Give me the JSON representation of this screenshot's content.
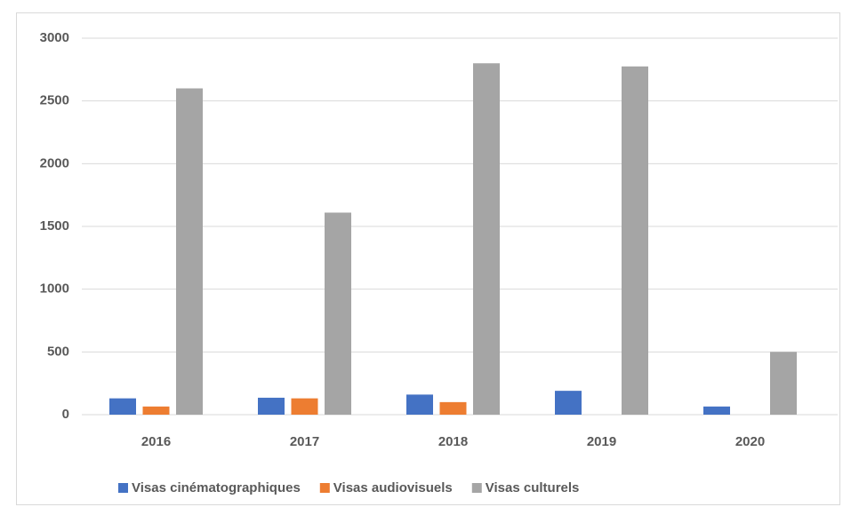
{
  "chart_data": {
    "type": "bar",
    "categories": [
      "2016",
      "2017",
      "2018",
      "2019",
      "2020"
    ],
    "series": [
      {
        "name": "Visas cinématographiques",
        "color": "#4472c4",
        "values": [
          130,
          135,
          160,
          190,
          65
        ]
      },
      {
        "name": "Visas audiovisuels",
        "color": "#ed7d31",
        "values": [
          65,
          130,
          100,
          0,
          0
        ]
      },
      {
        "name": "Visas culturels",
        "color": "#a5a5a5",
        "values": [
          2600,
          1610,
          2800,
          2775,
          500
        ]
      }
    ],
    "ylim": [
      0,
      3000
    ],
    "yticks": [
      0,
      500,
      1000,
      1500,
      2000,
      2500,
      3000
    ],
    "grid": true,
    "legend": "bottom"
  }
}
